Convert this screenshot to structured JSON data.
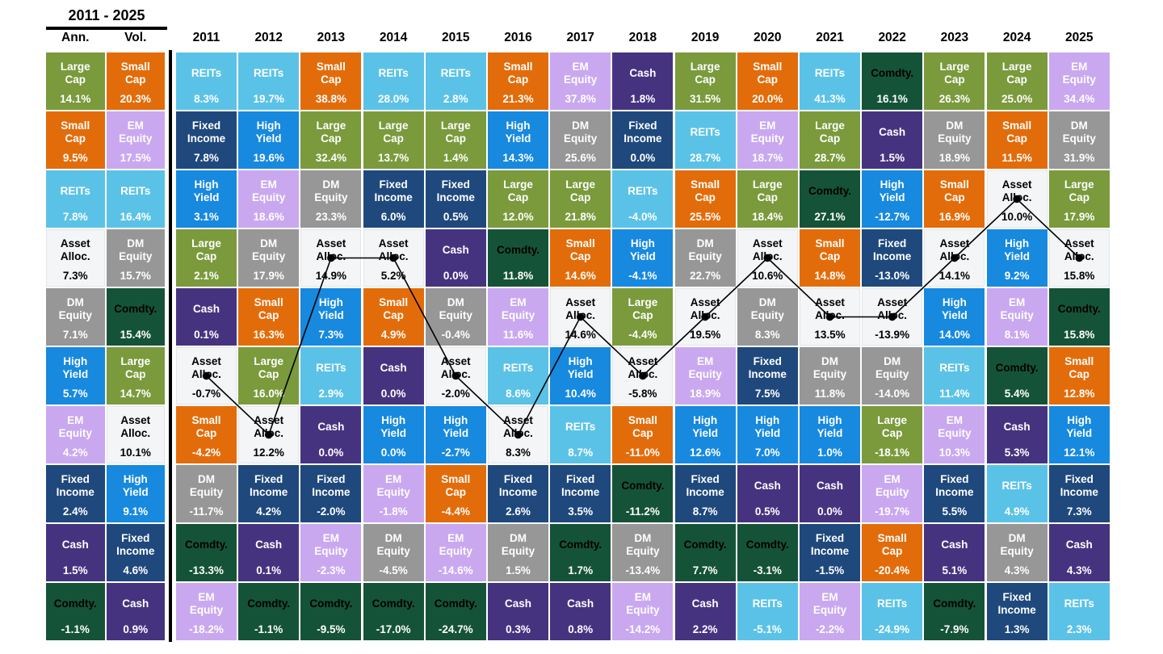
{
  "chart_data": {
    "type": "table",
    "title": "2011 - 2025",
    "unit": "%",
    "description": "Asset class returns quilt: each column ranks asset classes best-to-worst; cells show asset name and return",
    "line_overlay": {
      "asset": "Asset Alloc.",
      "color": "#000000"
    },
    "summary_columns": [
      {
        "label": "Ann.",
        "ranked": [
          [
            "Large Cap",
            14.1
          ],
          [
            "Small Cap",
            9.5
          ],
          [
            "REITs",
            7.8
          ],
          [
            "Asset Alloc.",
            7.3
          ],
          [
            "DM Equity",
            7.1
          ],
          [
            "High Yield",
            5.7
          ],
          [
            "EM Equity",
            4.2
          ],
          [
            "Fixed Income",
            2.4
          ],
          [
            "Cash",
            1.5
          ],
          [
            "Comdty.",
            -1.1
          ]
        ]
      },
      {
        "label": "Vol.",
        "ranked": [
          [
            "Small Cap",
            20.3
          ],
          [
            "EM Equity",
            17.5
          ],
          [
            "REITs",
            16.4
          ],
          [
            "DM Equity",
            15.7
          ],
          [
            "Comdty.",
            15.4
          ],
          [
            "Large Cap",
            14.7
          ],
          [
            "Asset Alloc.",
            10.1
          ],
          [
            "High Yield",
            9.1
          ],
          [
            "Fixed Income",
            4.6
          ],
          [
            "Cash",
            0.9
          ]
        ]
      }
    ],
    "year_columns": [
      {
        "label": "2011",
        "ranked": [
          [
            "REITs",
            8.3
          ],
          [
            "Fixed Income",
            7.8
          ],
          [
            "High Yield",
            3.1
          ],
          [
            "Large Cap",
            2.1
          ],
          [
            "Cash",
            0.1
          ],
          [
            "Asset Alloc.",
            -0.7
          ],
          [
            "Small Cap",
            -4.2
          ],
          [
            "DM Equity",
            -11.7
          ],
          [
            "Comdty.",
            -13.3
          ],
          [
            "EM Equity",
            -18.2
          ]
        ]
      },
      {
        "label": "2012",
        "ranked": [
          [
            "REITs",
            19.7
          ],
          [
            "High Yield",
            19.6
          ],
          [
            "EM Equity",
            18.6
          ],
          [
            "DM Equity",
            17.9
          ],
          [
            "Small Cap",
            16.3
          ],
          [
            "Large Cap",
            16.0
          ],
          [
            "Asset Alloc.",
            12.2
          ],
          [
            "Fixed Income",
            4.2
          ],
          [
            "Cash",
            0.1
          ],
          [
            "Comdty.",
            -1.1
          ]
        ]
      },
      {
        "label": "2013",
        "ranked": [
          [
            "Small Cap",
            38.8
          ],
          [
            "Large Cap",
            32.4
          ],
          [
            "DM Equity",
            23.3
          ],
          [
            "Asset Alloc.",
            14.9
          ],
          [
            "High Yield",
            7.3
          ],
          [
            "REITs",
            2.9
          ],
          [
            "Cash",
            0.0
          ],
          [
            "Fixed Income",
            -2.0
          ],
          [
            "EM Equity",
            -2.3
          ],
          [
            "Comdty.",
            -9.5
          ]
        ]
      },
      {
        "label": "2014",
        "ranked": [
          [
            "REITs",
            28.0
          ],
          [
            "Large Cap",
            13.7
          ],
          [
            "Fixed Income",
            6.0
          ],
          [
            "Asset Alloc.",
            5.2
          ],
          [
            "Small Cap",
            4.9
          ],
          [
            "Cash",
            0.0
          ],
          [
            "High Yield",
            0.0
          ],
          [
            "EM Equity",
            -1.8
          ],
          [
            "DM Equity",
            -4.5
          ],
          [
            "Comdty.",
            -17.0
          ]
        ]
      },
      {
        "label": "2015",
        "ranked": [
          [
            "REITs",
            2.8
          ],
          [
            "Large Cap",
            1.4
          ],
          [
            "Fixed Income",
            0.5
          ],
          [
            "Cash",
            0.0
          ],
          [
            "DM Equity",
            -0.4
          ],
          [
            "Asset Alloc.",
            -2.0
          ],
          [
            "High Yield",
            -2.7
          ],
          [
            "Small Cap",
            -4.4
          ],
          [
            "EM Equity",
            -14.6
          ],
          [
            "Comdty.",
            -24.7
          ]
        ]
      },
      {
        "label": "2016",
        "ranked": [
          [
            "Small Cap",
            21.3
          ],
          [
            "High Yield",
            14.3
          ],
          [
            "Large Cap",
            12.0
          ],
          [
            "Comdty.",
            11.8
          ],
          [
            "EM Equity",
            11.6
          ],
          [
            "REITs",
            8.6
          ],
          [
            "Asset Alloc.",
            8.3
          ],
          [
            "Fixed Income",
            2.6
          ],
          [
            "DM Equity",
            1.5
          ],
          [
            "Cash",
            0.3
          ]
        ]
      },
      {
        "label": "2017",
        "ranked": [
          [
            "EM Equity",
            37.8
          ],
          [
            "DM Equity",
            25.6
          ],
          [
            "Large Cap",
            21.8
          ],
          [
            "Small Cap",
            14.6
          ],
          [
            "Asset Alloc.",
            14.6
          ],
          [
            "High Yield",
            10.4
          ],
          [
            "REITs",
            8.7
          ],
          [
            "Fixed Income",
            3.5
          ],
          [
            "Comdty.",
            1.7
          ],
          [
            "Cash",
            0.8
          ]
        ]
      },
      {
        "label": "2018",
        "ranked": [
          [
            "Cash",
            1.8
          ],
          [
            "Fixed Income",
            0.0
          ],
          [
            "REITs",
            -4.0
          ],
          [
            "High Yield",
            -4.1
          ],
          [
            "Large Cap",
            -4.4
          ],
          [
            "Asset Alloc.",
            -5.8
          ],
          [
            "Small Cap",
            -11.0
          ],
          [
            "Comdty.",
            -11.2
          ],
          [
            "DM Equity",
            -13.4
          ],
          [
            "EM Equity",
            -14.2
          ]
        ]
      },
      {
        "label": "2019",
        "ranked": [
          [
            "Large Cap",
            31.5
          ],
          [
            "REITs",
            28.7
          ],
          [
            "Small Cap",
            25.5
          ],
          [
            "DM Equity",
            22.7
          ],
          [
            "Asset Alloc.",
            19.5
          ],
          [
            "EM Equity",
            18.9
          ],
          [
            "High Yield",
            12.6
          ],
          [
            "Fixed Income",
            8.7
          ],
          [
            "Comdty.",
            7.7
          ],
          [
            "Cash",
            2.2
          ]
        ]
      },
      {
        "label": "2020",
        "ranked": [
          [
            "Small Cap",
            20.0
          ],
          [
            "EM Equity",
            18.7
          ],
          [
            "Large Cap",
            18.4
          ],
          [
            "Asset Alloc.",
            10.6
          ],
          [
            "DM Equity",
            8.3
          ],
          [
            "Fixed Income",
            7.5
          ],
          [
            "High Yield",
            7.0
          ],
          [
            "Cash",
            0.5
          ],
          [
            "Comdty.",
            -3.1
          ],
          [
            "REITs",
            -5.1
          ]
        ]
      },
      {
        "label": "2021",
        "ranked": [
          [
            "REITs",
            41.3
          ],
          [
            "Large Cap",
            28.7
          ],
          [
            "Comdty.",
            27.1
          ],
          [
            "Small Cap",
            14.8
          ],
          [
            "Asset Alloc.",
            13.5
          ],
          [
            "DM Equity",
            11.8
          ],
          [
            "High Yield",
            1.0
          ],
          [
            "Cash",
            0.0
          ],
          [
            "Fixed Income",
            -1.5
          ],
          [
            "EM Equity",
            -2.2
          ]
        ]
      },
      {
        "label": "2022",
        "ranked": [
          [
            "Comdty.",
            16.1
          ],
          [
            "Cash",
            1.5
          ],
          [
            "High Yield",
            -12.7
          ],
          [
            "Fixed Income",
            -13.0
          ],
          [
            "Asset Alloc.",
            -13.9
          ],
          [
            "DM Equity",
            -14.0
          ],
          [
            "Large Cap",
            -18.1
          ],
          [
            "EM Equity",
            -19.7
          ],
          [
            "Small Cap",
            -20.4
          ],
          [
            "REITs",
            -24.9
          ]
        ]
      },
      {
        "label": "2023",
        "ranked": [
          [
            "Large Cap",
            26.3
          ],
          [
            "DM Equity",
            18.9
          ],
          [
            "Small Cap",
            16.9
          ],
          [
            "Asset Alloc.",
            14.1
          ],
          [
            "High Yield",
            14.0
          ],
          [
            "REITs",
            11.4
          ],
          [
            "EM Equity",
            10.3
          ],
          [
            "Fixed Income",
            5.5
          ],
          [
            "Cash",
            5.1
          ],
          [
            "Comdty.",
            -7.9
          ]
        ]
      },
      {
        "label": "2024",
        "ranked": [
          [
            "Large Cap",
            25.0
          ],
          [
            "Small Cap",
            11.5
          ],
          [
            "Asset Alloc.",
            10.0
          ],
          [
            "High Yield",
            9.2
          ],
          [
            "EM Equity",
            8.1
          ],
          [
            "Comdty.",
            5.4
          ],
          [
            "Cash",
            5.3
          ],
          [
            "REITs",
            4.9
          ],
          [
            "DM Equity",
            4.3
          ],
          [
            "Fixed Income",
            1.3
          ]
        ]
      },
      {
        "label": "2025",
        "ranked": [
          [
            "EM Equity",
            34.4
          ],
          [
            "DM Equity",
            31.9
          ],
          [
            "Large Cap",
            17.9
          ],
          [
            "Asset Alloc.",
            15.8
          ],
          [
            "Comdty.",
            15.8
          ],
          [
            "Small Cap",
            12.8
          ],
          [
            "High Yield",
            12.1
          ],
          [
            "Fixed Income",
            7.3
          ],
          [
            "Cash",
            4.3
          ],
          [
            "REITs",
            2.3
          ]
        ]
      }
    ]
  },
  "asset_styles": {
    "Large Cap": {
      "bg": "#7A9A3C",
      "text": "#FFFFFF"
    },
    "Small Cap": {
      "bg": "#E36C0A",
      "text": "#FFFFFF"
    },
    "REITs": {
      "bg": "#5BC2E7",
      "text": "#FFFFFF"
    },
    "High Yield": {
      "bg": "#1789DF",
      "text": "#FFFFFF"
    },
    "Fixed Income": {
      "bg": "#1F497D",
      "text": "#FFFFFF"
    },
    "DM Equity": {
      "bg": "#979797",
      "text": "#FFFFFF"
    },
    "EM Equity": {
      "bg": "#C9A8F0",
      "text": "#FFFFFF"
    },
    "Cash": {
      "bg": "#463380",
      "text": "#FFFFFF"
    },
    "Comdty.": {
      "bg": "#155338",
      "text": "#FFFFFF",
      "label_text": "#000000"
    },
    "Asset Alloc.": {
      "bg": "#F3F5F7",
      "text": "#000000",
      "border": "#E2E6EA"
    }
  }
}
